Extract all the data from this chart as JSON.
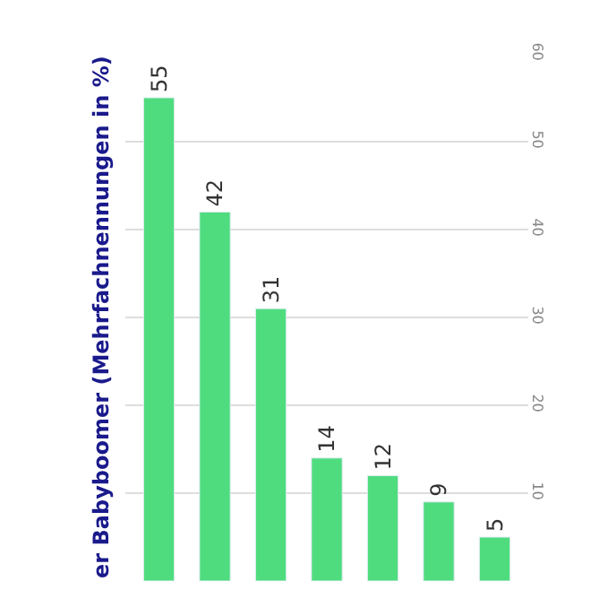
{
  "chart_data": {
    "type": "bar",
    "title": "er Babyboomer (Mehrfachnennungen in %)",
    "categories": [
      null,
      null,
      null,
      null,
      null,
      null,
      null
    ],
    "values": [
      55,
      42,
      31,
      14,
      12,
      9,
      5
    ],
    "color": "#4fdc7f",
    "ylim": [
      0,
      60
    ],
    "yticks": [
      10,
      20,
      30,
      40,
      50,
      60
    ],
    "grid": "y",
    "data_labels": true
  }
}
